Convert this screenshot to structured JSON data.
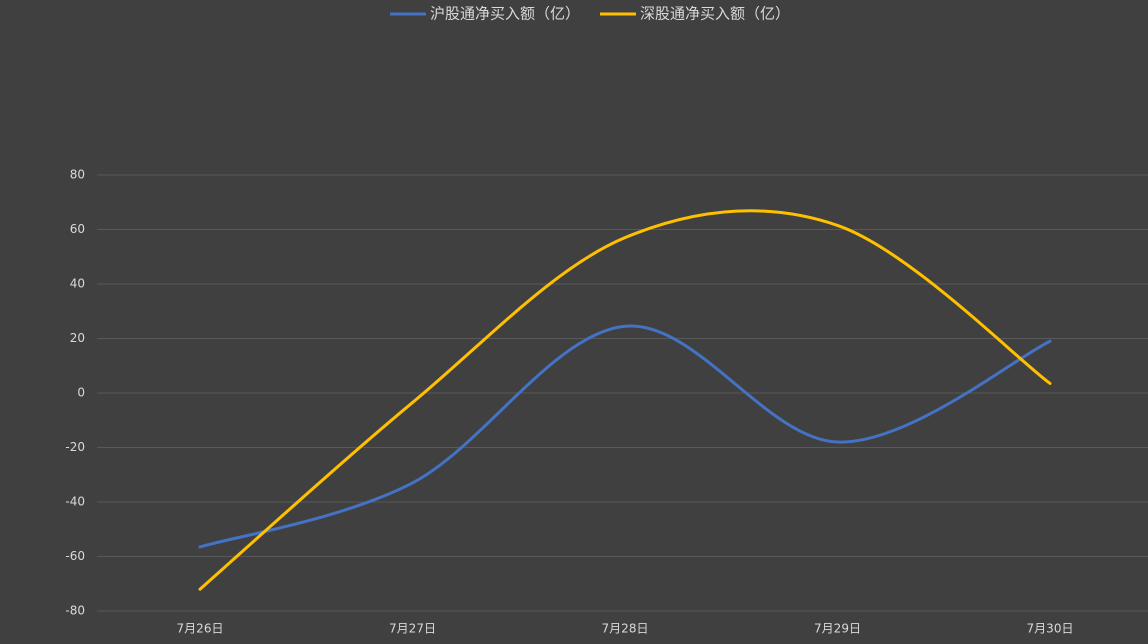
{
  "chart_data": {
    "type": "line",
    "categories": [
      "7月26日",
      "7月27日",
      "7月28日",
      "7月29日",
      "7月30日"
    ],
    "series": [
      {
        "name": "沪股通净买入额（亿）",
        "color": "#4472c4",
        "values": [
          -56.5,
          -33,
          24.5,
          -18,
          19
        ]
      },
      {
        "name": "深股通净买入额（亿）",
        "color": "#ffc000",
        "values": [
          -72,
          -3.5,
          57,
          61.5,
          3.5
        ]
      }
    ],
    "ylim": [
      -80,
      80
    ],
    "yticks": [
      -80,
      -60,
      -40,
      -20,
      0,
      20,
      40,
      60,
      80
    ],
    "grid": true,
    "legend": "top",
    "smooth": true
  }
}
